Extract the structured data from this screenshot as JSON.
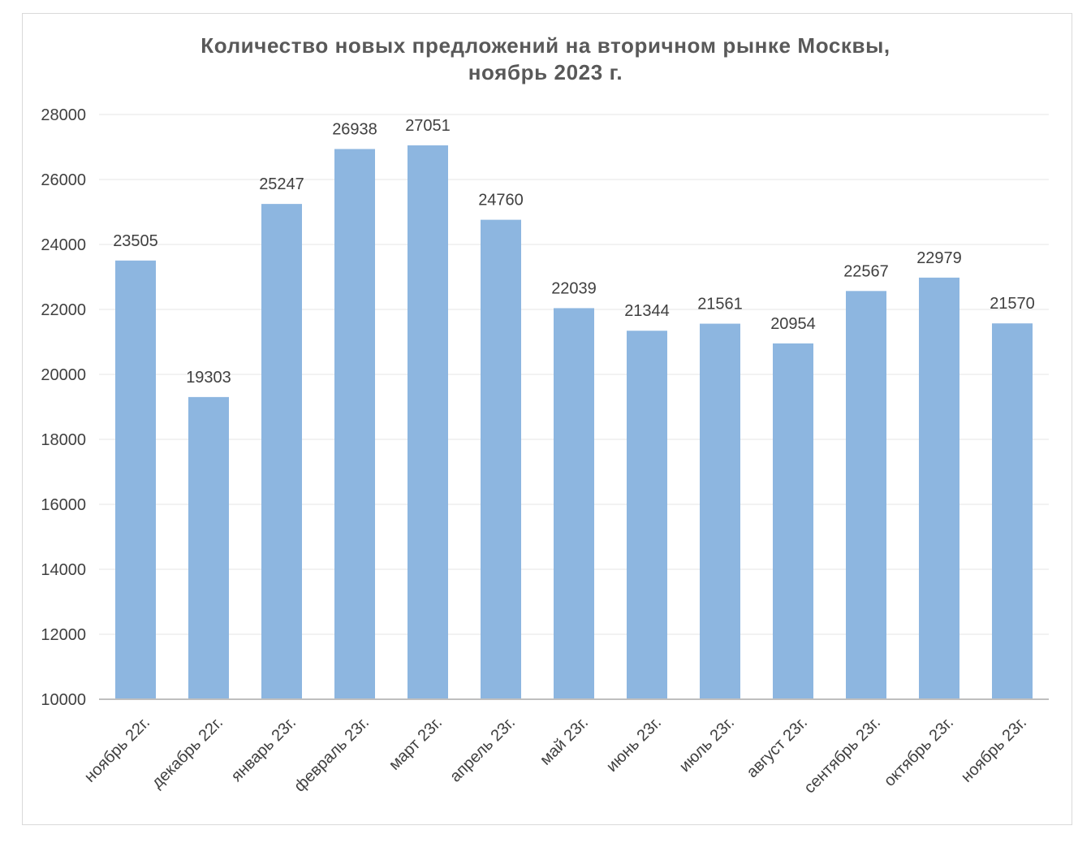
{
  "chart_data": {
    "type": "bar",
    "title": "Количество новых предложений на вторичном рынке Москвы,",
    "subtitle": "ноябрь 2023 г.",
    "categories": [
      "ноябрь 22г.",
      "декабрь 22г.",
      "январь 23г.",
      "февраль 23г.",
      "март 23г.",
      "апрель 23г.",
      "май 23г.",
      "июнь 23г.",
      "июль 23г.",
      "август 23г.",
      "сентябрь 23г.",
      "октябрь 23г.",
      "ноябрь 23г."
    ],
    "values": [
      23505,
      19303,
      25247,
      26938,
      27051,
      24760,
      22039,
      21344,
      21561,
      20954,
      22567,
      22979,
      21570
    ],
    "ylim": [
      10000,
      28000
    ],
    "yticks": [
      10000,
      12000,
      14000,
      16000,
      18000,
      20000,
      22000,
      24000,
      26000,
      28000
    ],
    "grid": true,
    "bar_color": "#8db6e0",
    "grid_color": "#eeeeee",
    "axis_color": "#bfbfbf"
  }
}
